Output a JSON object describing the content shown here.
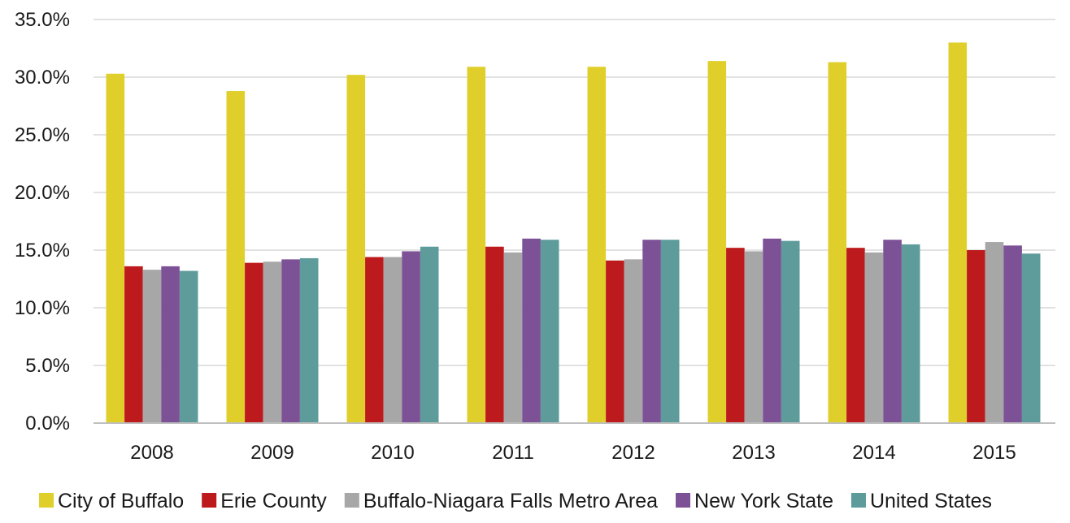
{
  "chart_data": {
    "type": "bar",
    "title": "",
    "xlabel": "",
    "ylabel": "",
    "ylim": [
      0,
      35
    ],
    "yticks": [
      0,
      5,
      10,
      15,
      20,
      25,
      30,
      35
    ],
    "ytick_labels": [
      "0.0%",
      "5.0%",
      "10.0%",
      "15.0%",
      "20.0%",
      "25.0%",
      "30.0%",
      "35.0%"
    ],
    "grid": true,
    "legend_position": "bottom",
    "categories": [
      "2008",
      "2009",
      "2010",
      "2011",
      "2012",
      "2013",
      "2014",
      "2015"
    ],
    "series": [
      {
        "name": "City of Buffalo",
        "color": "#e0cf2b",
        "values": [
          30.3,
          28.8,
          30.2,
          30.9,
          30.9,
          31.4,
          31.3,
          33.0
        ]
      },
      {
        "name": "Erie County",
        "color": "#bd1a1d",
        "values": [
          13.6,
          13.9,
          14.4,
          15.3,
          14.1,
          15.2,
          15.2,
          15.0
        ]
      },
      {
        "name": "Buffalo-Niagara Falls Metro Area",
        "color": "#a7a7a7",
        "values": [
          13.3,
          14.0,
          14.4,
          14.8,
          14.2,
          14.9,
          14.8,
          15.7
        ]
      },
      {
        "name": "New York State",
        "color": "#7d5196",
        "values": [
          13.6,
          14.2,
          14.9,
          16.0,
          15.9,
          16.0,
          15.9,
          15.4
        ]
      },
      {
        "name": "United States",
        "color": "#5e9b9b",
        "values": [
          13.2,
          14.3,
          15.3,
          15.9,
          15.9,
          15.8,
          15.5,
          14.7
        ]
      }
    ]
  }
}
